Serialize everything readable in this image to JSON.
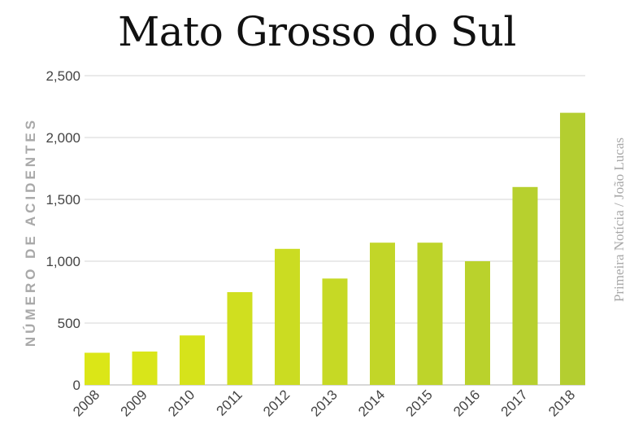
{
  "chart_data": {
    "type": "bar",
    "title": "Mato Grosso do Sul",
    "ylabel": "NÚMERO DE ACIDENTES",
    "xlabel": "",
    "categories": [
      "2008",
      "2009",
      "2010",
      "2011",
      "2012",
      "2013",
      "2014",
      "2015",
      "2016",
      "2017",
      "2018"
    ],
    "values": [
      260,
      270,
      400,
      750,
      1100,
      860,
      1150,
      1150,
      1000,
      1600,
      2200
    ],
    "ylim": [
      0,
      2500
    ],
    "yticks": [
      0,
      500,
      1000,
      1500,
      2000,
      2500
    ],
    "ytick_labels": [
      "0",
      "500",
      "1,000",
      "1,500",
      "2,000",
      "2,500"
    ],
    "grid": true,
    "bar_colors": [
      "#dbe617",
      "#d9e519",
      "#d6e31b",
      "#d0df1f",
      "#cbdc22",
      "#c6d925",
      "#c2d628",
      "#bed42a",
      "#bad22c",
      "#b7d02e",
      "#b4ce30"
    ]
  },
  "credit": "Primeira Notícia / João Lucas"
}
